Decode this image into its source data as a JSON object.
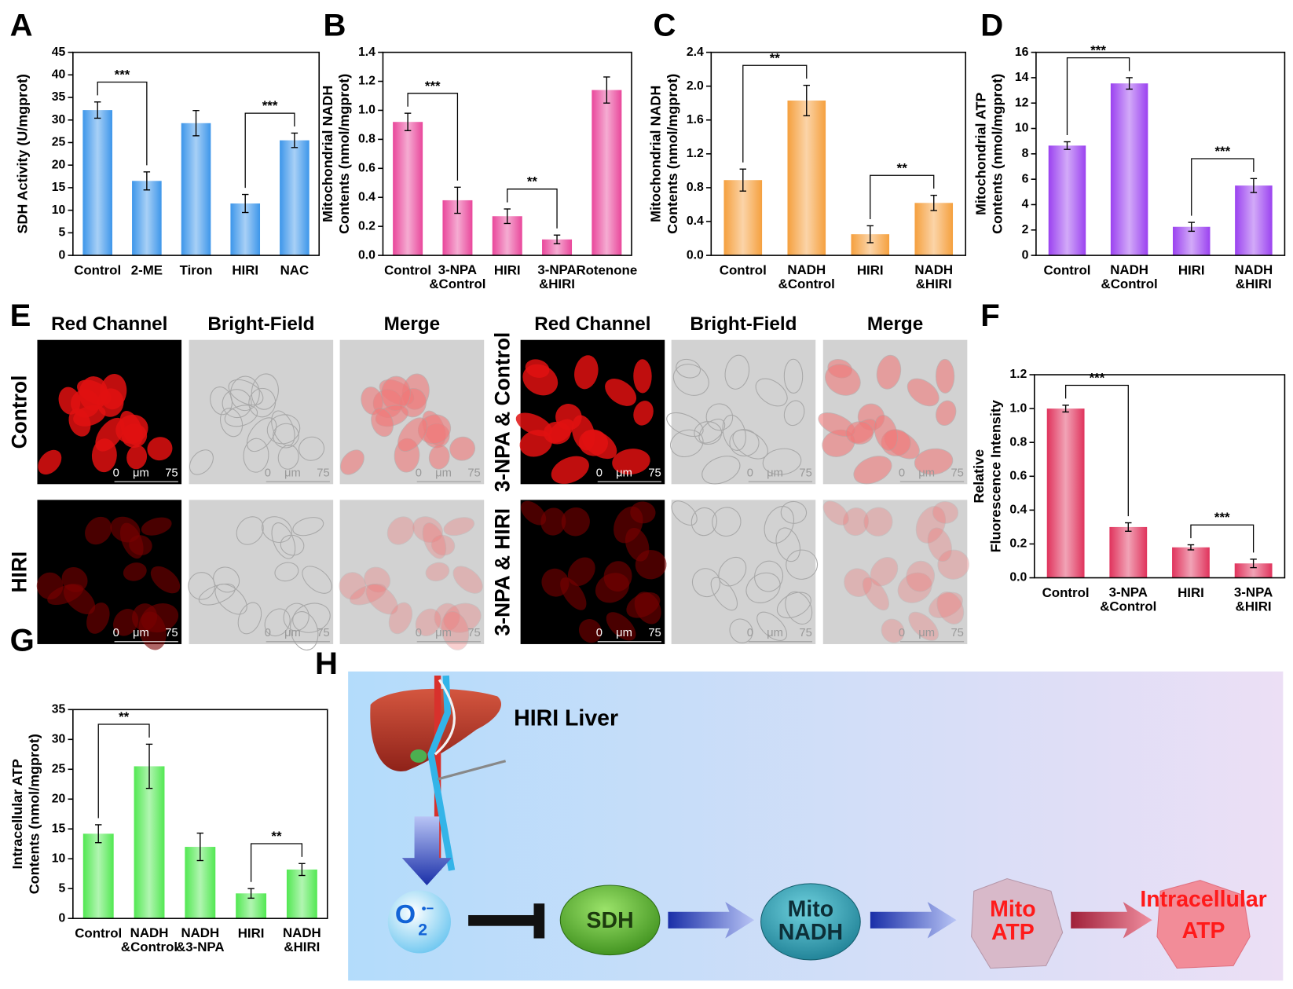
{
  "chart_data": [
    {
      "type": "bar",
      "panel": "A",
      "ylabel": "SDH Activity (U/mgprot)",
      "color": "#3d96ea",
      "categories": [
        "Control",
        "2-ME",
        "Tiron",
        "HIRI",
        "NAC"
      ],
      "values": [
        32.2,
        16.5,
        29.3,
        11.5,
        25.5
      ],
      "errors": [
        1.8,
        2.0,
        2.8,
        2.0,
        1.6
      ],
      "ylim": [
        0,
        45
      ],
      "yticks": [
        0,
        5,
        10,
        15,
        20,
        25,
        30,
        35,
        40,
        45
      ],
      "annotations": [
        {
          "text": "***",
          "between": [
            "Control",
            "2-ME"
          ]
        },
        {
          "text": "***",
          "between": [
            "HIRI",
            "NAC"
          ]
        }
      ]
    },
    {
      "type": "bar",
      "panel": "B",
      "ylabel": "Mitochondrial NADH\nContents (nmol/mgprot)",
      "color": "#e9479b",
      "categories": [
        "Control",
        "3-NPA\n&Control",
        "HIRI",
        "3-NPA\n&HIRI",
        "Rotenone"
      ],
      "values": [
        0.92,
        0.38,
        0.27,
        0.11,
        1.14
      ],
      "errors": [
        0.06,
        0.09,
        0.05,
        0.03,
        0.09
      ],
      "ylim": [
        0,
        1.4
      ],
      "yticks": [
        {
          "value": 0,
          "label": "0.0"
        },
        0.2,
        0.4,
        0.6,
        0.8,
        {
          "value": 1,
          "label": "1.0"
        },
        1.2,
        1.4
      ],
      "annotations": [
        {
          "text": "***",
          "between": [
            "Control",
            "3-NPA\n&Control"
          ]
        },
        {
          "text": "**",
          "between": [
            "HIRI",
            "3-NPA\n&HIRI"
          ]
        }
      ]
    },
    {
      "type": "bar",
      "panel": "C",
      "ylabel": "Mitochondrial NADH\nContents (nmol/mgprot)",
      "color": "#f5a03e",
      "categories": [
        "Control",
        "NADH\n&Control",
        "HIRI",
        "NADH\n&HIRI"
      ],
      "values": [
        0.89,
        1.83,
        0.25,
        0.62
      ],
      "errors": [
        0.13,
        0.18,
        0.1,
        0.09
      ],
      "ylim": [
        0,
        2.4
      ],
      "yticks": [
        {
          "value": 0,
          "label": "0.0"
        },
        0.4,
        0.8,
        1.2,
        1.6,
        {
          "value": 2,
          "label": "2.0"
        },
        2.4
      ],
      "annotations": [
        {
          "text": "**",
          "between": [
            "Control",
            "NADH\n&Control"
          ]
        },
        {
          "text": "**",
          "between": [
            "HIRI",
            "NADH\n&HIRI"
          ]
        }
      ]
    },
    {
      "type": "bar",
      "panel": "D",
      "ylabel": "Mitochondrial ATP\nContents (nmol/mgprot)",
      "color": "#9b42f0",
      "categories": [
        "Control",
        "NADH\n&Control",
        "HIRI",
        "NADH\n&HIRI"
      ],
      "values": [
        8.65,
        13.55,
        2.25,
        5.5
      ],
      "errors": [
        0.3,
        0.45,
        0.35,
        0.55
      ],
      "ylim": [
        0,
        16
      ],
      "yticks": [
        0,
        2,
        4,
        6,
        8,
        10,
        12,
        14,
        16
      ],
      "annotations": [
        {
          "text": "***",
          "between": [
            "Control",
            "NADH\n&Control"
          ]
        },
        {
          "text": "***",
          "between": [
            "HIRI",
            "NADH\n&HIRI"
          ]
        }
      ]
    },
    {
      "type": "bar",
      "panel": "F",
      "ylabel": "Relative\nFluorescence Intensity",
      "color": "#e0335c",
      "categories": [
        "Control",
        "3-NPA\n&Control",
        "HIRI",
        "3-NPA\n&HIRI"
      ],
      "values": [
        1.0,
        0.3,
        0.18,
        0.085
      ],
      "errors": [
        0.02,
        0.025,
        0.015,
        0.025
      ],
      "ylim": [
        0,
        1.2
      ],
      "yticks": [
        {
          "value": 0,
          "label": "0.0"
        },
        0.2,
        0.4,
        0.6,
        0.8,
        {
          "value": 1,
          "label": "1.0"
        },
        1.2
      ],
      "annotations": [
        {
          "text": "***",
          "between": [
            "Control",
            "3-NPA\n&Control"
          ]
        },
        {
          "text": "***",
          "between": [
            "HIRI",
            "3-NPA\n&HIRI"
          ]
        }
      ]
    },
    {
      "type": "bar",
      "panel": "G",
      "ylabel": "Intracellular ATP\nContents (nmol/mgprot)",
      "color": "#52e852",
      "categories": [
        "Control",
        "NADH\n&Control",
        "NADH\n&3-NPA",
        "HIRI",
        "NADH\n&HIRI"
      ],
      "values": [
        14.2,
        25.5,
        12.0,
        4.2,
        8.2
      ],
      "errors": [
        1.5,
        3.7,
        2.3,
        0.8,
        1.0
      ],
      "ylim": [
        0,
        35
      ],
      "yticks": [
        0,
        5,
        10,
        15,
        20,
        25,
        30,
        35
      ],
      "annotations": [
        {
          "text": "**",
          "between": [
            "Control",
            "NADH\n&Control"
          ]
        },
        {
          "text": "**",
          "between": [
            "HIRI",
            "NADH\n&HIRI"
          ]
        }
      ]
    }
  ],
  "microscopy": {
    "panel": "E",
    "columns": [
      "Red Channel",
      "Bright-Field",
      "Merge"
    ],
    "groups": [
      {
        "rows": [
          "Control",
          "HIRI"
        ]
      },
      {
        "rows": [
          "3-NPA & Control",
          "3-NPA & HIRI"
        ]
      }
    ],
    "scale": [
      "0",
      "μm",
      "75"
    ]
  },
  "diagram": {
    "panel": "H",
    "liver": "HIRI Liver",
    "superoxide": {
      "base": "O",
      "sub": "2",
      "sup": "•−"
    },
    "sdh": "SDH",
    "mito_nadh": "Mito\nNADH",
    "mito_atp": "Mito\nATP",
    "cell_atp": "Intracellular\nATP"
  }
}
